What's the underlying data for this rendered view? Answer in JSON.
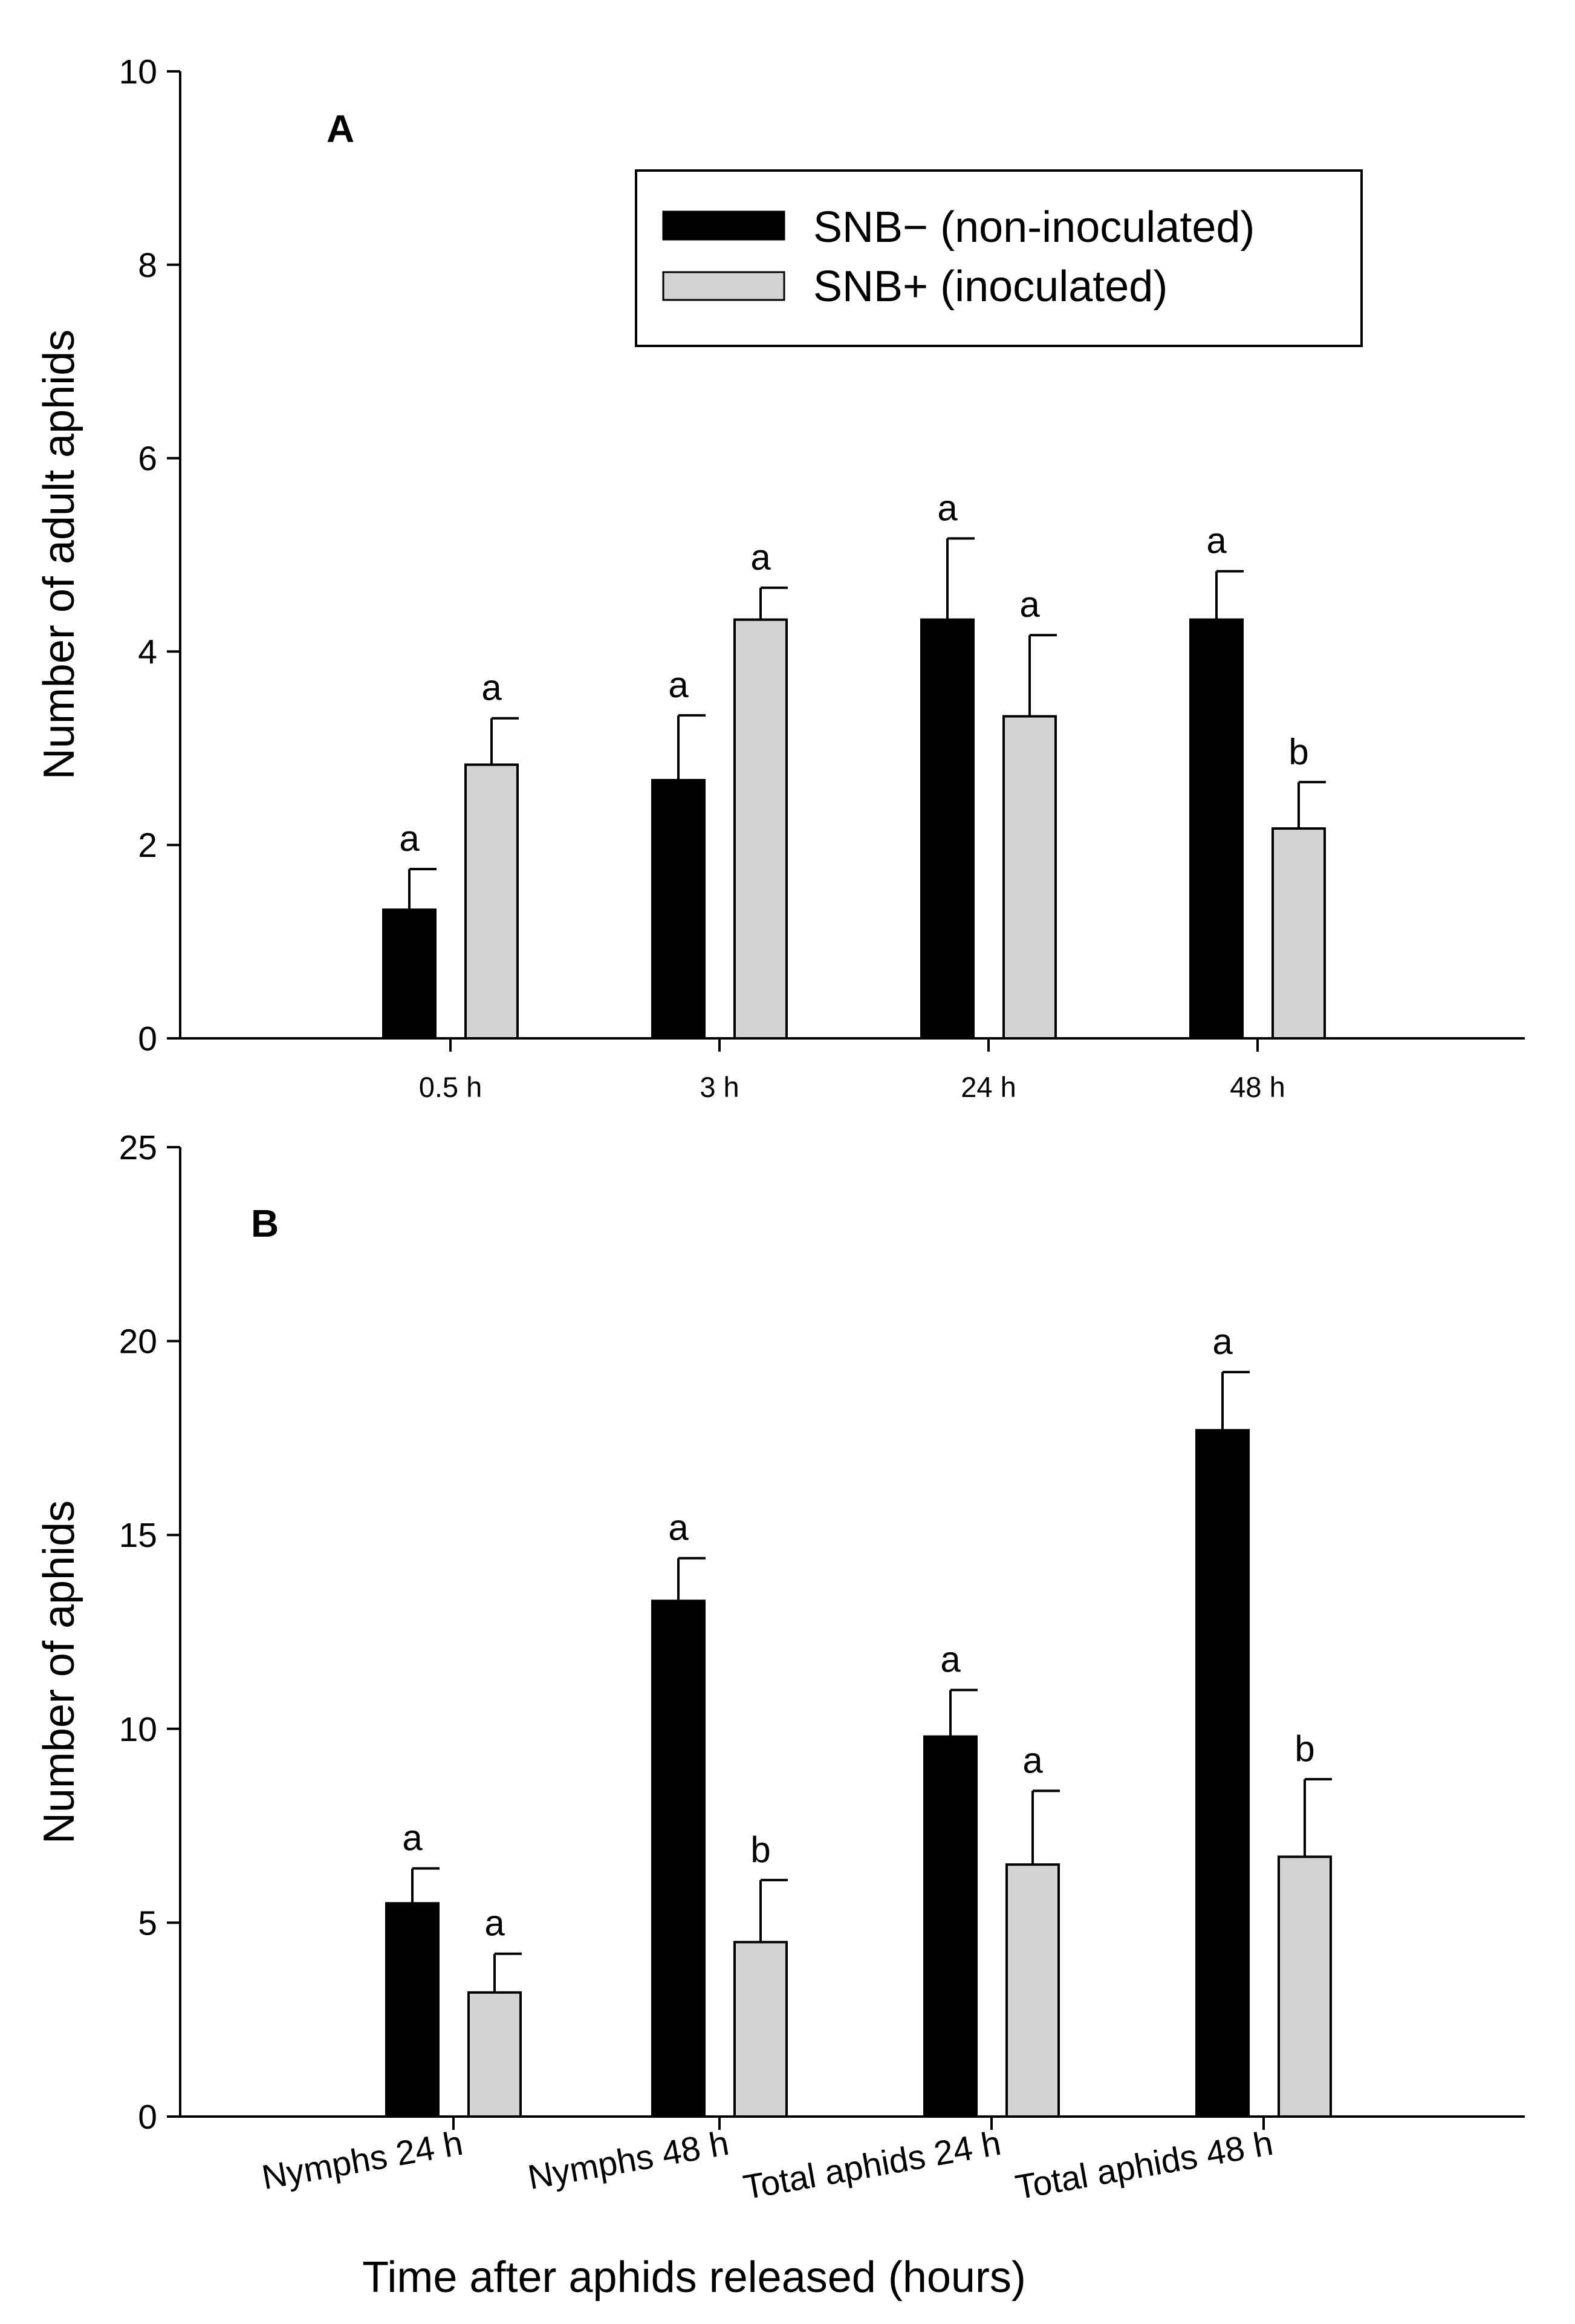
{
  "figure": {
    "x_title": "Time after aphids released (hours)",
    "legend": [
      {
        "label": "SNB− (non-inoculated)",
        "color": "#000000"
      },
      {
        "label": "SNB+ (inoculated)",
        "color": "#d3d3d3"
      }
    ]
  },
  "chart_data": [
    {
      "type": "bar",
      "panel": "A",
      "ylabel": "Number of adult aphids",
      "xlabel": "Time after aphids released (hours)",
      "ylim": [
        0,
        10
      ],
      "yticks": [
        "0",
        "2",
        "4",
        "6",
        "8",
        "10"
      ],
      "categories": [
        "0.5 h",
        "3 h",
        "24 h",
        "48 h"
      ],
      "series": [
        {
          "name": "SNB− (non-inoculated)",
          "color": "#000000",
          "values": [
            1.33,
            2.67,
            4.33,
            4.33
          ],
          "errors": [
            0.42,
            0.67,
            0.84,
            0.5
          ],
          "letters": [
            "a",
            "a",
            "a",
            "a"
          ]
        },
        {
          "name": "SNB+ (inoculated)",
          "color": "#d3d3d3",
          "values": [
            2.83,
            4.33,
            3.33,
            2.17
          ],
          "errors": [
            0.48,
            0.33,
            0.84,
            0.48
          ],
          "letters": [
            "a",
            "a",
            "a",
            "b"
          ]
        }
      ]
    },
    {
      "type": "bar",
      "panel": "B",
      "ylabel": "Number of aphids",
      "xlabel": "Time after aphids released (hours)",
      "ylim": [
        0,
        25
      ],
      "yticks": [
        "0",
        "5",
        "10",
        "15",
        "20",
        "25"
      ],
      "categories": [
        "Nymphs 24 h",
        "Nymphs 48 h",
        "Total aphids 24 h",
        "Total aphids 48 h"
      ],
      "series": [
        {
          "name": "SNB− (non-inoculated)",
          "color": "#000000",
          "values": [
            5.5,
            13.3,
            9.8,
            17.7
          ],
          "errors": [
            0.9,
            1.1,
            1.2,
            1.5
          ],
          "letters": [
            "a",
            "a",
            "a",
            "a"
          ]
        },
        {
          "name": "SNB+ (inoculated)",
          "color": "#d3d3d3",
          "values": [
            3.2,
            4.5,
            6.5,
            6.7
          ],
          "errors": [
            1.0,
            1.6,
            1.9,
            2.0
          ],
          "letters": [
            "a",
            "b",
            "a",
            "b"
          ]
        }
      ]
    }
  ]
}
